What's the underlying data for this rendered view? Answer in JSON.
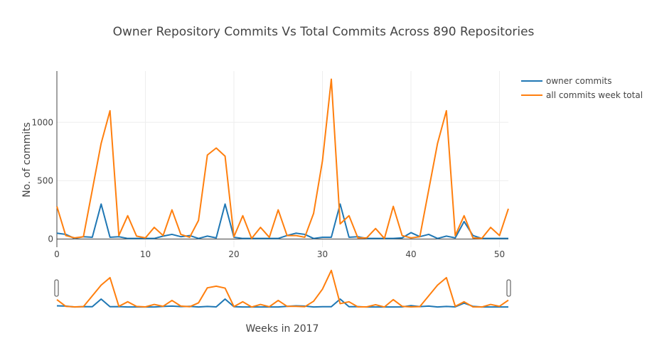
{
  "chart_data": {
    "type": "line",
    "title": "Owner Repository Commits Vs Total Commits Across 890 Repositories",
    "xlabel": "Weeks in 2017",
    "ylabel": "No. of commits",
    "x": [
      0,
      1,
      2,
      3,
      4,
      5,
      6,
      7,
      8,
      9,
      10,
      11,
      12,
      13,
      14,
      15,
      16,
      17,
      18,
      19,
      20,
      21,
      22,
      23,
      24,
      25,
      26,
      27,
      28,
      29,
      30,
      31,
      32,
      33,
      34,
      35,
      36,
      37,
      38,
      39,
      40,
      41,
      42,
      43,
      44,
      45,
      46,
      47,
      48,
      49,
      50,
      51
    ],
    "xlim": [
      0,
      51
    ],
    "ylim": [
      -70,
      1440
    ],
    "xticks": [
      0,
      10,
      20,
      30,
      40,
      50
    ],
    "yticks": [
      0,
      500,
      1000
    ],
    "grid": true,
    "legend_position": "top-right",
    "series": [
      {
        "name": "owner commits",
        "color": "#1f77b4",
        "values": [
          50,
          40,
          5,
          20,
          15,
          300,
          15,
          20,
          5,
          5,
          5,
          5,
          25,
          40,
          20,
          30,
          5,
          25,
          10,
          300,
          15,
          5,
          5,
          5,
          5,
          5,
          30,
          50,
          40,
          5,
          15,
          15,
          300,
          15,
          20,
          5,
          5,
          5,
          5,
          10,
          55,
          20,
          40,
          5,
          25,
          10,
          150,
          30,
          5,
          5,
          5,
          5
        ]
      },
      {
        "name": "all commits week total",
        "color": "#ff7f0e",
        "values": [
          280,
          30,
          10,
          20,
          420,
          820,
          1100,
          30,
          200,
          25,
          10,
          100,
          30,
          250,
          40,
          15,
          160,
          720,
          780,
          710,
          20,
          200,
          5,
          100,
          15,
          250,
          30,
          30,
          15,
          220,
          670,
          1370,
          130,
          200,
          10,
          10,
          90,
          5,
          280,
          30,
          10,
          20,
          420,
          820,
          1100,
          30,
          200,
          10,
          5,
          100,
          30,
          260
        ]
      }
    ]
  }
}
